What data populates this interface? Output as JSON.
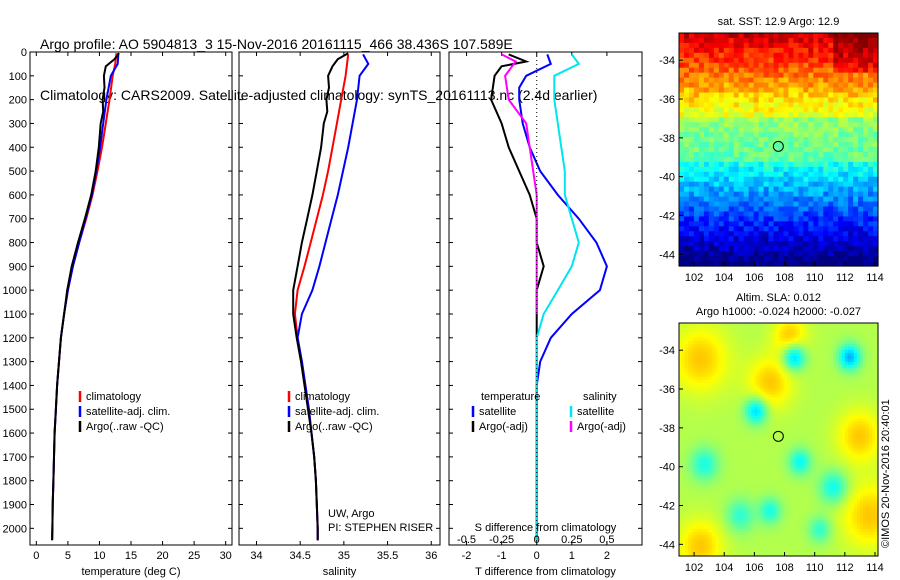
{
  "title": {
    "line1": "Argo profile: AO 5904813_3 15-Nov-2016 20161115_466 38.436S 107.589E",
    "line2": "Climatology: CARS2009. Satellite-adjusted climatology: synTS_20161113.nc (2.4d earlier)"
  },
  "watermark": "©IMOS 20-Nov-2016 20:40:01",
  "colors": {
    "climatology": "#ff0000",
    "satellite": "#0000ff",
    "argo": "#000000",
    "sat_salinity": "#00e5ee",
    "argo_salinity": "#ff00ff"
  },
  "chart_data": [
    {
      "type": "line",
      "panel": "temperature",
      "xlabel": "temperature (deg C)",
      "ylabel": "",
      "xlim": [
        -1,
        31
      ],
      "ylim": [
        2070,
        0
      ],
      "xticks": [
        0,
        5,
        10,
        15,
        20,
        25,
        30
      ],
      "yticks": [
        0,
        100,
        200,
        300,
        400,
        500,
        600,
        700,
        800,
        900,
        1000,
        1100,
        1200,
        1300,
        1400,
        1500,
        1600,
        1700,
        1800,
        1900,
        2000
      ],
      "legend": [
        "climatology",
        "satellite-adj. clim.",
        "Argo(..raw -QC)"
      ],
      "series": [
        {
          "name": "climatology",
          "color": "#ff0000",
          "points": [
            [
              12.7,
              5
            ],
            [
              12.5,
              50
            ],
            [
              12.1,
              100
            ],
            [
              11.6,
              200
            ],
            [
              11.0,
              300
            ],
            [
              10.4,
              400
            ],
            [
              9.7,
              500
            ],
            [
              8.9,
              600
            ],
            [
              7.9,
              700
            ],
            [
              6.8,
              800
            ],
            [
              5.8,
              900
            ],
            [
              5.0,
              1000
            ],
            [
              4.4,
              1100
            ],
            [
              3.9,
              1200
            ],
            [
              3.6,
              1300
            ],
            [
              3.3,
              1400
            ],
            [
              3.1,
              1500
            ],
            [
              2.9,
              1600
            ],
            [
              2.8,
              1700
            ],
            [
              2.7,
              1800
            ],
            [
              2.6,
              1900
            ],
            [
              2.55,
              2000
            ],
            [
              2.5,
              2050
            ]
          ]
        },
        {
          "name": "satellite-adj. clim.",
          "color": "#0000ff",
          "points": [
            [
              13.0,
              5
            ],
            [
              12.9,
              50
            ],
            [
              11.8,
              100
            ],
            [
              11.1,
              200
            ],
            [
              10.6,
              300
            ],
            [
              10.1,
              400
            ],
            [
              9.5,
              500
            ],
            [
              8.8,
              600
            ],
            [
              7.8,
              700
            ],
            [
              6.8,
              800
            ],
            [
              5.8,
              900
            ],
            [
              5.0,
              1000
            ],
            [
              4.4,
              1100
            ],
            [
              3.9,
              1200
            ],
            [
              3.6,
              1300
            ],
            [
              3.3,
              1400
            ],
            [
              3.1,
              1500
            ],
            [
              2.9,
              1600
            ],
            [
              2.8,
              1700
            ],
            [
              2.7,
              1800
            ],
            [
              2.6,
              1900
            ],
            [
              2.55,
              2000
            ],
            [
              2.5,
              2050
            ]
          ]
        },
        {
          "name": "Argo(..raw -QC)",
          "color": "#000000",
          "points": [
            [
              13.1,
              5
            ],
            [
              12.4,
              30
            ],
            [
              11.0,
              60
            ],
            [
              10.7,
              100
            ],
            [
              10.8,
              150
            ],
            [
              10.5,
              200
            ],
            [
              10.6,
              250
            ],
            [
              10.2,
              300
            ],
            [
              9.9,
              400
            ],
            [
              9.4,
              500
            ],
            [
              8.7,
              600
            ],
            [
              7.7,
              700
            ],
            [
              6.6,
              800
            ],
            [
              5.6,
              900
            ],
            [
              4.9,
              1000
            ],
            [
              4.4,
              1100
            ],
            [
              3.9,
              1200
            ],
            [
              3.6,
              1300
            ],
            [
              3.3,
              1400
            ],
            [
              3.1,
              1500
            ],
            [
              2.9,
              1600
            ],
            [
              2.8,
              1700
            ],
            [
              2.7,
              1800
            ],
            [
              2.6,
              1900
            ],
            [
              2.55,
              2000
            ],
            [
              2.5,
              2050
            ]
          ]
        }
      ]
    },
    {
      "type": "line",
      "panel": "salinity",
      "xlabel": "salinity",
      "ylabel": "",
      "xlim": [
        33.8,
        36.1
      ],
      "ylim": [
        2070,
        0
      ],
      "xticks": [
        34,
        34.5,
        35,
        35.5,
        36
      ],
      "legend": [
        "climatology",
        "satellite-adj. clim.",
        "Argo(..raw -QC)"
      ],
      "annotation": [
        "UW, Argo",
        "PI: STEPHEN RISER"
      ],
      "series": [
        {
          "name": "climatology",
          "color": "#ff0000",
          "points": [
            [
              35.05,
              10
            ],
            [
              35.02,
              100
            ],
            [
              34.97,
              200
            ],
            [
              34.92,
              300
            ],
            [
              34.87,
              400
            ],
            [
              34.82,
              500
            ],
            [
              34.76,
              600
            ],
            [
              34.69,
              700
            ],
            [
              34.62,
              800
            ],
            [
              34.55,
              900
            ],
            [
              34.47,
              1000
            ],
            [
              34.44,
              1100
            ],
            [
              34.47,
              1200
            ],
            [
              34.52,
              1300
            ],
            [
              34.56,
              1400
            ],
            [
              34.6,
              1500
            ],
            [
              34.63,
              1600
            ],
            [
              34.66,
              1700
            ],
            [
              34.68,
              1800
            ],
            [
              34.69,
              1900
            ],
            [
              34.7,
              2000
            ],
            [
              34.7,
              2050
            ]
          ]
        },
        {
          "name": "satellite-adj. clim.",
          "color": "#0000ff",
          "points": [
            [
              35.22,
              10
            ],
            [
              35.28,
              50
            ],
            [
              35.18,
              100
            ],
            [
              35.15,
              200
            ],
            [
              35.1,
              300
            ],
            [
              35.05,
              400
            ],
            [
              34.99,
              500
            ],
            [
              34.93,
              600
            ],
            [
              34.86,
              700
            ],
            [
              34.79,
              800
            ],
            [
              34.72,
              900
            ],
            [
              34.64,
              1000
            ],
            [
              34.52,
              1100
            ],
            [
              34.47,
              1200
            ],
            [
              34.52,
              1300
            ],
            [
              34.56,
              1400
            ],
            [
              34.6,
              1500
            ],
            [
              34.63,
              1600
            ],
            [
              34.66,
              1700
            ],
            [
              34.68,
              1800
            ],
            [
              34.69,
              1900
            ],
            [
              34.7,
              2000
            ],
            [
              34.7,
              2050
            ]
          ]
        },
        {
          "name": "Argo(..raw -QC)",
          "color": "#000000",
          "points": [
            [
              35.05,
              5
            ],
            [
              34.93,
              30
            ],
            [
              34.87,
              60
            ],
            [
              34.82,
              100
            ],
            [
              34.83,
              150
            ],
            [
              34.8,
              200
            ],
            [
              34.81,
              250
            ],
            [
              34.77,
              300
            ],
            [
              34.74,
              400
            ],
            [
              34.69,
              500
            ],
            [
              34.64,
              600
            ],
            [
              34.58,
              700
            ],
            [
              34.52,
              800
            ],
            [
              34.47,
              900
            ],
            [
              34.42,
              1000
            ],
            [
              34.42,
              1100
            ],
            [
              34.46,
              1200
            ],
            [
              34.51,
              1300
            ],
            [
              34.55,
              1400
            ],
            [
              34.59,
              1500
            ],
            [
              34.63,
              1600
            ],
            [
              34.66,
              1700
            ],
            [
              34.68,
              1800
            ],
            [
              34.69,
              1900
            ],
            [
              34.7,
              2000
            ],
            [
              34.7,
              2050
            ]
          ]
        }
      ]
    },
    {
      "type": "line",
      "panel": "difference",
      "xlabel": "T difference from climatology",
      "xlabel_top": "S difference from climatology",
      "xlim": [
        -2.5,
        3
      ],
      "ylim": [
        2070,
        0
      ],
      "xticks": [
        -2,
        -1,
        0,
        1,
        2
      ],
      "xticks_top": [
        -0.5,
        -0.25,
        0,
        0.25,
        0.5
      ],
      "xticks_top_labels": [
        "-0.5",
        "-0.25",
        "0",
        "0.25",
        "0.5"
      ],
      "legend_temperature_title": "temperature",
      "legend_salinity_title": "salinity",
      "legend_temperature": [
        "satellite",
        "Argo(-adj)"
      ],
      "legend_salinity": [
        "satellite",
        "Argo(-adj)"
      ],
      "series": [
        {
          "name": "satellite",
          "color": "#0000ff",
          "points": [
            [
              0.3,
              10
            ],
            [
              0.4,
              50
            ],
            [
              -0.3,
              100
            ],
            [
              -0.5,
              150
            ],
            [
              -0.5,
              200
            ],
            [
              -0.4,
              300
            ],
            [
              -0.2,
              400
            ],
            [
              0.1,
              500
            ],
            [
              0.6,
              600
            ],
            [
              1.2,
              700
            ],
            [
              1.7,
              800
            ],
            [
              2.0,
              900
            ],
            [
              1.8,
              1000
            ],
            [
              1.0,
              1100
            ],
            [
              0.4,
              1200
            ],
            [
              0.1,
              1300
            ],
            [
              0,
              1400
            ],
            [
              0,
              1500
            ],
            [
              0,
              1600
            ],
            [
              0,
              1700
            ],
            [
              0,
              1800
            ],
            [
              0,
              1900
            ],
            [
              0,
              2000
            ],
            [
              0,
              2050
            ]
          ]
        },
        {
          "name": "Argo(-adj)",
          "color": "#000000",
          "points": [
            [
              -0.8,
              10
            ],
            [
              -0.3,
              40
            ],
            [
              -1.0,
              60
            ],
            [
              -1.2,
              100
            ],
            [
              -1.3,
              200
            ],
            [
              -1.0,
              300
            ],
            [
              -0.8,
              400
            ],
            [
              -0.5,
              500
            ],
            [
              -0.2,
              600
            ],
            [
              0,
              700
            ],
            [
              0,
              800
            ],
            [
              0.2,
              900
            ],
            [
              0,
              1000
            ],
            [
              0,
              1100
            ],
            [
              0,
              1200
            ],
            [
              0,
              1300
            ],
            [
              0,
              1400
            ],
            [
              0,
              1500
            ],
            [
              0,
              1600
            ],
            [
              0,
              1700
            ],
            [
              0,
              1800
            ],
            [
              0,
              1900
            ],
            [
              0,
              2000
            ],
            [
              0,
              2050
            ]
          ]
        },
        {
          "name": "satellite",
          "color": "#00e5ee",
          "points": [
            [
              1.0,
              10
            ],
            [
              1.2,
              50
            ],
            [
              0.5,
              100
            ],
            [
              0.5,
              200
            ],
            [
              0.6,
              300
            ],
            [
              0.7,
              400
            ],
            [
              0.8,
              500
            ],
            [
              0.8,
              600
            ],
            [
              1.0,
              700
            ],
            [
              1.2,
              800
            ],
            [
              1.0,
              900
            ],
            [
              0.6,
              1000
            ],
            [
              0.2,
              1100
            ],
            [
              0,
              1200
            ],
            [
              0,
              1400
            ],
            [
              0,
              1600
            ],
            [
              0,
              1800
            ],
            [
              0,
              2000
            ],
            [
              0,
              2050
            ]
          ]
        },
        {
          "name": "Argo(-adj)",
          "color": "#ff00ff",
          "points": [
            [
              -1.0,
              10
            ],
            [
              -0.6,
              40
            ],
            [
              -0.9,
              100
            ],
            [
              -0.8,
              200
            ],
            [
              -0.3,
              300
            ],
            [
              -0.2,
              400
            ],
            [
              -0.1,
              500
            ],
            [
              0,
              600
            ],
            [
              0,
              800
            ],
            [
              0,
              1000
            ],
            [
              0,
              1100
            ]
          ]
        }
      ]
    },
    {
      "type": "heatmap",
      "panel": "sst-map",
      "title": "sat. SST: 12.9  Argo: 12.9",
      "xlim": [
        101,
        114.2
      ],
      "ylim": [
        -44.6,
        -32.6
      ],
      "xticks": [
        102,
        104,
        106,
        108,
        110,
        112,
        114
      ],
      "yticks": [
        -34,
        -36,
        -38,
        -40,
        -42,
        -44
      ],
      "marker": [
        107.589,
        -38.436
      ]
    },
    {
      "type": "heatmap",
      "panel": "sla-map",
      "title": "Altim. SLA: 0.012",
      "subtitle": "Argo h1000: -0.024  h2000: -0.027",
      "xlim": [
        101,
        114.2
      ],
      "ylim": [
        -44.6,
        -32.6
      ],
      "xticks": [
        102,
        104,
        106,
        108,
        110,
        112,
        114
      ],
      "yticks": [
        -34,
        -36,
        -38,
        -40,
        -42,
        -44
      ],
      "marker": [
        107.589,
        -38.436
      ]
    }
  ]
}
